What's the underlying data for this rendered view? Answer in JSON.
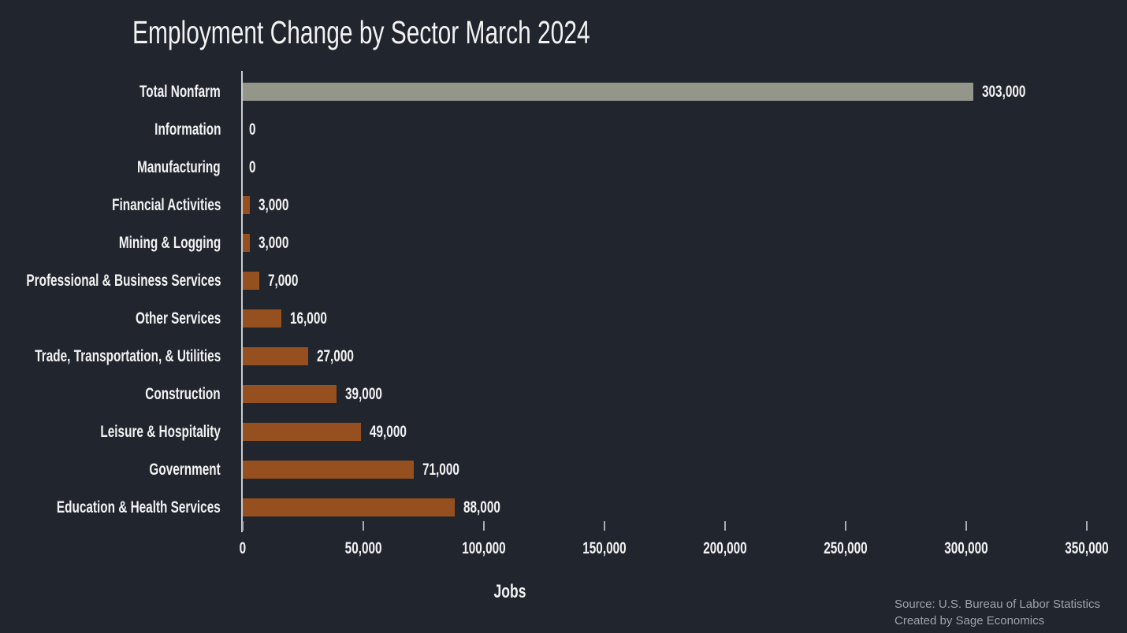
{
  "chart_data": {
    "type": "bar",
    "orientation": "horizontal",
    "title": "Employment Change by Sector March 2024",
    "xlabel": "Jobs",
    "categories": [
      "Total Nonfarm",
      "Information",
      "Manufacturing",
      "Financial Activities",
      "Mining & Logging",
      "Professional & Business Services",
      "Other Services",
      "Trade, Transportation, & Utilities",
      "Construction",
      "Leisure & Hospitality",
      "Government",
      "Education & Health Services"
    ],
    "values": [
      303000,
      0,
      0,
      3000,
      3000,
      7000,
      16000,
      27000,
      39000,
      49000,
      71000,
      88000
    ],
    "value_labels": [
      "303,000",
      "0",
      "0",
      "3,000",
      "3,000",
      "7,000",
      "16,000",
      "27,000",
      "39,000",
      "49,000",
      "71,000",
      "88,000"
    ],
    "bar_colors": [
      "#94968A",
      "#964F1E",
      "#964F1E",
      "#964F1E",
      "#964F1E",
      "#964F1E",
      "#964F1E",
      "#964F1E",
      "#964F1E",
      "#964F1E",
      "#964F1E",
      "#964F1E"
    ],
    "xlim": [
      0,
      350000
    ],
    "xticks": [
      0,
      50000,
      100000,
      150000,
      200000,
      250000,
      300000,
      350000
    ],
    "xtick_labels": [
      "0",
      "50,000",
      "100,000",
      "150,000",
      "200,000",
      "250,000",
      "300,000",
      "350,000"
    ],
    "grid": false,
    "legend": false
  },
  "footer": {
    "source": "Source: U.S. Bureau of Labor Statistics",
    "credit": "Created by Sage Economics"
  },
  "colors": {
    "background": "#21252E",
    "bar": "#964F1E",
    "total_bar": "#94968A",
    "text": "#F2F2F2",
    "muted_text": "#9FA3AA",
    "axis_line": "#C9CCD1",
    "tick_mark": "#A9ACB2"
  }
}
